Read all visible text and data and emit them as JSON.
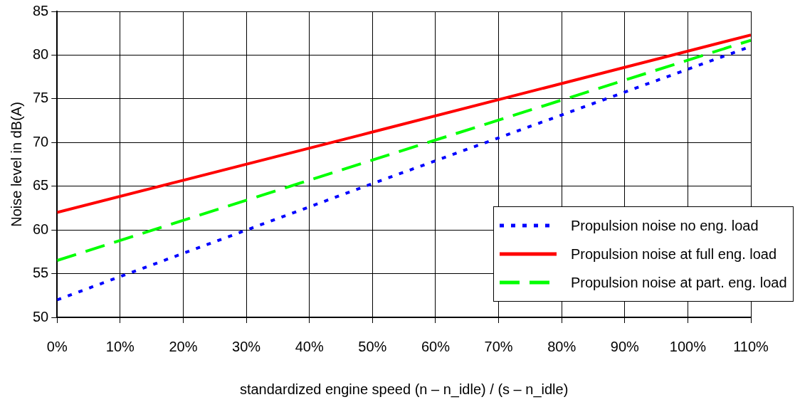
{
  "chart_data": {
    "type": "line",
    "xlabel": "standardized engine speed (n – n_idle) / (s – n_idle)",
    "ylabel": "Noise level in dB(A)",
    "x": [
      0,
      50,
      110
    ],
    "series": [
      {
        "name": "Propulsion noise no eng. load",
        "color": "#0000ff",
        "line_style": "dotted",
        "values": [
          52,
          65.3,
          81
        ]
      },
      {
        "name": "Propulsion noise at full eng. load",
        "color": "#ff0000",
        "line_style": "solid",
        "values": [
          62,
          71.2,
          82.3
        ]
      },
      {
        "name": "Propulsion noise at part. eng. load",
        "color": "#00ff00",
        "line_style": "dashed",
        "values": [
          56.5,
          68,
          81.7
        ]
      }
    ],
    "xlim": [
      0,
      110
    ],
    "xticks": [
      {
        "value": 0,
        "label": "0%"
      },
      {
        "value": 10,
        "label": "10%"
      },
      {
        "value": 20,
        "label": "20%"
      },
      {
        "value": 30,
        "label": "30%"
      },
      {
        "value": 40,
        "label": "40%"
      },
      {
        "value": 50,
        "label": "50%"
      },
      {
        "value": 60,
        "label": "60%"
      },
      {
        "value": 70,
        "label": "70%"
      },
      {
        "value": 80,
        "label": "80%"
      },
      {
        "value": 90,
        "label": "90%"
      },
      {
        "value": 100,
        "label": "100%"
      },
      {
        "value": 110,
        "label": "110%"
      }
    ],
    "ylim": [
      50,
      85
    ],
    "yticks": [
      50,
      55,
      60,
      65,
      70,
      75,
      80,
      85
    ],
    "grid": true,
    "legend": "bottom right",
    "marker": "none"
  }
}
